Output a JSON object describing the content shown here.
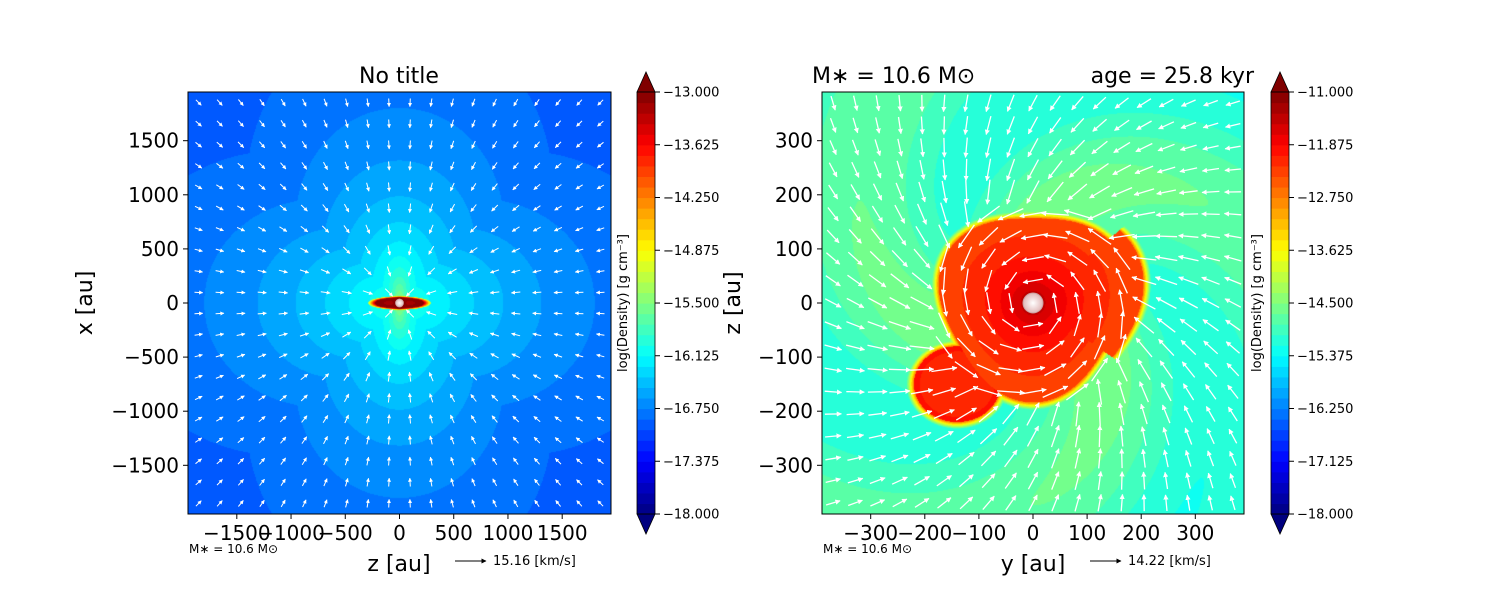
{
  "chart_data": [
    {
      "type": "heatmap",
      "title": "No title",
      "xlabel": "z [au]",
      "ylabel": "x [au]",
      "xlim": [
        -1950,
        1950
      ],
      "ylim": [
        -1950,
        1950
      ],
      "xticks": [
        -1500,
        -1000,
        -500,
        0,
        500,
        1000,
        1500
      ],
      "yticks": [
        -1500,
        -1000,
        -500,
        0,
        500,
        1000,
        1500
      ],
      "colorbar": {
        "label": "log(Density) [g cm⁻³]",
        "min": -18.0,
        "max": -13.0,
        "ticks": [
          "−13.000",
          "−13.625",
          "−14.250",
          "−14.875",
          "−15.500",
          "−16.125",
          "−16.750",
          "−17.375",
          "−18.000"
        ],
        "tick_values": [
          -13.0,
          -13.625,
          -14.25,
          -14.875,
          -15.5,
          -16.125,
          -16.75,
          -17.375,
          -18.0
        ]
      },
      "field": {
        "kind": "infall-cross",
        "background": -17.0,
        "center": -15.9,
        "disk_halfwidth": 230,
        "disk_halfheight": 50
      },
      "star_note": "M∗ = 10.6 M⊙",
      "quiver_key": "15.16 [km/s]"
    },
    {
      "type": "heatmap",
      "title_left": "M∗ = 10.6 M⊙",
      "title_right": "age = 25.8 kyr",
      "xlabel": "y [au]",
      "ylabel": "z [au]",
      "xlim": [
        -390,
        390
      ],
      "ylim": [
        -390,
        390
      ],
      "xticks": [
        -300,
        -200,
        -100,
        0,
        100,
        200,
        300
      ],
      "yticks": [
        -300,
        -200,
        -100,
        0,
        100,
        200,
        300
      ],
      "colorbar": {
        "label": "log(Density) [g cm⁻³]",
        "min": -18.0,
        "max": -11.0,
        "ticks": [
          "−11.000",
          "−11.875",
          "−12.750",
          "−13.625",
          "−14.500",
          "−15.375",
          "−16.250",
          "−17.125",
          "−18.000"
        ],
        "tick_values": [
          -11.0,
          -11.875,
          -12.75,
          -13.625,
          -14.5,
          -15.375,
          -16.25,
          -17.125,
          -18.0
        ]
      },
      "field": {
        "kind": "disk",
        "background": -15.0,
        "disk_radius": 170,
        "disk_level": -12.1,
        "center_level": -11.2
      },
      "star_note": "M∗ = 10.6 M⊙",
      "quiver_key": "14.22 [km/s]"
    }
  ]
}
